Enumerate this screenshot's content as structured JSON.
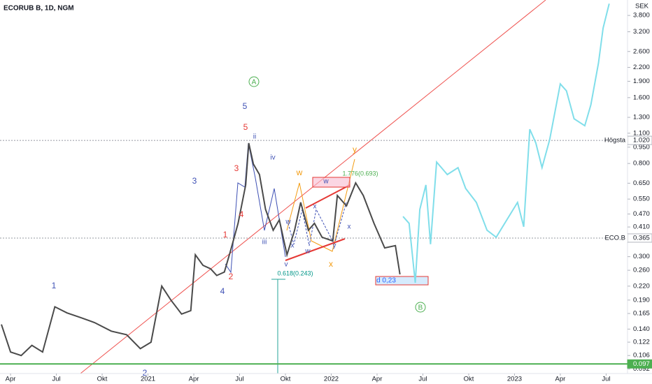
{
  "chart_data": {
    "type": "line",
    "title": "ECORUB B, 1D, NGM",
    "currency": "SEK",
    "log_scale": true,
    "xticks": [
      {
        "value": 3,
        "label": "Apr"
      },
      {
        "value": 6,
        "label": "Jul"
      },
      {
        "value": 9,
        "label": "Okt"
      },
      {
        "value": 12,
        "label": "2021"
      },
      {
        "value": 15,
        "label": "Apr"
      },
      {
        "value": 18,
        "label": "Jul"
      },
      {
        "value": 21,
        "label": "Okt"
      },
      {
        "value": 24,
        "label": "2022"
      },
      {
        "value": 27,
        "label": "Apr"
      },
      {
        "value": 30,
        "label": "Jul"
      },
      {
        "value": 33,
        "label": "Okt"
      },
      {
        "value": 36,
        "label": "2023"
      },
      {
        "value": 39,
        "label": "Apr"
      },
      {
        "value": 42,
        "label": "Jul"
      }
    ],
    "xlim": [
      2.31,
      43.4
    ],
    "ylim": [
      0.0877,
      4.47
    ],
    "yticks": [
      {
        "value": 3.8,
        "label": "3.800"
      },
      {
        "value": 3.2,
        "label": "3.200"
      },
      {
        "value": 2.6,
        "label": "2.600"
      },
      {
        "value": 2.2,
        "label": "2.200"
      },
      {
        "value": 1.9,
        "label": "1.900"
      },
      {
        "value": 1.6,
        "label": "1.600"
      },
      {
        "value": 1.3,
        "label": "1.300"
      },
      {
        "value": 1.1,
        "label": "1.100"
      },
      {
        "value": 0.95,
        "label": "0.950"
      },
      {
        "value": 0.8,
        "label": "0.800"
      },
      {
        "value": 0.65,
        "label": "0.650"
      },
      {
        "value": 0.55,
        "label": "0.550"
      },
      {
        "value": 0.47,
        "label": "0.470"
      },
      {
        "value": 0.41,
        "label": "0.410"
      },
      {
        "value": 0.3,
        "label": "0.300"
      },
      {
        "value": 0.26,
        "label": "0.260"
      },
      {
        "value": 0.22,
        "label": "0.220"
      },
      {
        "value": 0.19,
        "label": "0.190"
      },
      {
        "value": 0.165,
        "label": "0.165"
      },
      {
        "value": 0.14,
        "label": "0.140"
      },
      {
        "value": 0.122,
        "label": "0.122"
      },
      {
        "value": 0.106,
        "label": "0.106"
      },
      {
        "value": 0.092,
        "label": "0.092"
      }
    ],
    "hlines": [
      {
        "name": "Högsta",
        "value": 1.02,
        "label": "1.020",
        "color": "#9598a1"
      },
      {
        "name": "ECO.B",
        "value": 0.365,
        "label": "0.365",
        "color": "#9598a1"
      },
      {
        "value": 0.097,
        "label": "0.097",
        "color": "#4caf50"
      }
    ],
    "series": [
      {
        "color": "#4a4a4a",
        "x": [
          2.4,
          3.0,
          3.7,
          4.4,
          5.1,
          5.9,
          6.7,
          7.6,
          8.5,
          9.6,
          10.6,
          11.5,
          12.2,
          12.9,
          13.5,
          14.2,
          14.8,
          15.1,
          15.6,
          16.1,
          16.5,
          17.0,
          17.4,
          17.9,
          18.4,
          18.6,
          18.9,
          19.3,
          19.7,
          20.2,
          20.6,
          21.1,
          21.6,
          22.0,
          22.5,
          22.9,
          23.4,
          24.1,
          24.4,
          25.0,
          25.6,
          26.1,
          26.8,
          27.5,
          28.2,
          28.5
        ],
        "values": [
          0.147,
          0.11,
          0.106,
          0.118,
          0.11,
          0.177,
          0.166,
          0.158,
          0.15,
          0.137,
          0.132,
          0.114,
          0.122,
          0.22,
          0.19,
          0.164,
          0.17,
          0.306,
          0.274,
          0.264,
          0.246,
          0.255,
          0.318,
          0.426,
          0.638,
          0.991,
          0.795,
          0.712,
          0.493,
          0.396,
          0.442,
          0.306,
          0.396,
          0.531,
          0.396,
          0.426,
          0.368,
          0.354,
          0.571,
          0.512,
          0.652,
          0.571,
          0.426,
          0.329,
          0.337,
          0.249
        ]
      },
      {
        "color": "#80deea",
        "x": [
          28.7,
          29.1,
          29.5,
          29.8,
          30.2,
          30.5,
          30.9,
          31.6,
          32.3,
          32.8,
          33.5,
          34.2,
          34.8,
          35.5,
          36.2,
          36.6,
          37.0,
          37.4,
          37.8,
          38.3,
          39.0,
          39.4,
          39.9,
          40.6,
          41.0,
          41.5,
          41.8,
          42.2
        ],
        "values": [
          0.458,
          0.426,
          0.228,
          0.493,
          0.638,
          0.342,
          0.812,
          0.712,
          0.766,
          0.615,
          0.531,
          0.396,
          0.368,
          0.442,
          0.531,
          0.411,
          1.147,
          0.991,
          0.766,
          1.027,
          1.848,
          1.718,
          1.281,
          1.19,
          1.483,
          2.304,
          3.325,
          4.3
        ]
      }
    ],
    "annotations": [
      {
        "text": "1",
        "color": "#3f51b5"
      },
      {
        "text": "2",
        "color": "#3f51b5"
      },
      {
        "text": "3",
        "color": "#3f51b5"
      },
      {
        "text": "4",
        "color": "#3f51b5"
      },
      {
        "text": "5",
        "color": "#3f51b5"
      },
      {
        "text": "1",
        "color": "#e53935"
      },
      {
        "text": "2",
        "color": "#e53935"
      },
      {
        "text": "3",
        "color": "#e53935"
      },
      {
        "text": "4",
        "color": "#e53935"
      },
      {
        "text": "5",
        "color": "#e53935"
      },
      {
        "text": "A",
        "color": "#4caf50"
      },
      {
        "text": "B",
        "color": "#4caf50"
      },
      {
        "text": "ii",
        "color": "#3f51b5"
      },
      {
        "text": "iii",
        "color": "#3f51b5"
      },
      {
        "text": "iv",
        "color": "#3f51b5"
      },
      {
        "text": "v",
        "color": "#3f51b5"
      },
      {
        "text": "w",
        "color": "#f39c12"
      },
      {
        "text": "x",
        "color": "#f39c12"
      },
      {
        "text": "y",
        "color": "#f39c12"
      },
      {
        "text": "w",
        "color": "#3f51b5"
      },
      {
        "text": "x",
        "color": "#3f51b5"
      },
      {
        "text": "w",
        "color": "#3f51b5"
      },
      {
        "text": "x",
        "color": "#3f51b5"
      },
      {
        "text": "y",
        "color": "#3f51b5"
      },
      {
        "text": "x",
        "color": "#3f51b5"
      },
      {
        "text": "w",
        "color": "#3f51b5"
      },
      {
        "text": "0.618(0.243)",
        "color": "#009688"
      },
      {
        "text": "1.776(0.693)",
        "color": "#4caf50"
      },
      {
        "text": "d 0,23",
        "color": "#2962ff"
      }
    ]
  }
}
